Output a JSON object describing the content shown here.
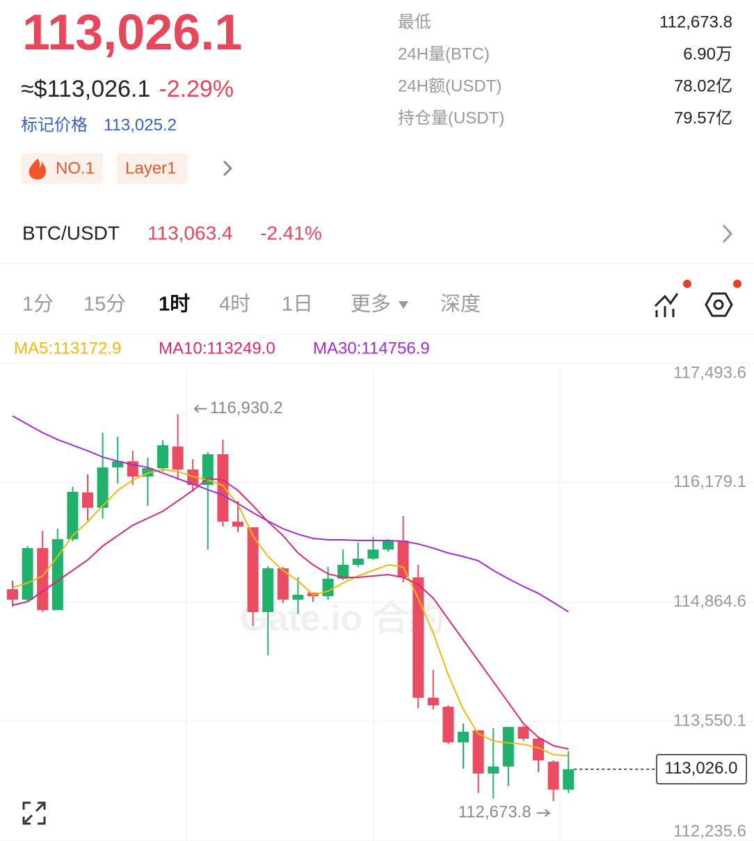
{
  "header": {
    "price": "113,026.1",
    "usd_price": "≈$113,026.1",
    "change": "-2.29%",
    "mark_price_label": "标记价格",
    "mark_price": "113,025.2",
    "tags": [
      "NO.1",
      "Layer1"
    ]
  },
  "stats": [
    {
      "label": "最低",
      "value": "112,673.8"
    },
    {
      "label": "24H量(BTC)",
      "value": "6.90万"
    },
    {
      "label": "24H额(USDT)",
      "value": "78.02亿"
    },
    {
      "label": "持仓量(USDT)",
      "value": "79.57亿"
    }
  ],
  "pair": {
    "name": "BTC/USDT",
    "price": "113,063.4",
    "change": "-2.41%"
  },
  "tabs": [
    "1分",
    "15分",
    "1时",
    "4时",
    "1日",
    "更多",
    "深度"
  ],
  "active_tab": "1时",
  "chart_data": {
    "type": "candlestick",
    "open": [
      115006,
      114891,
      115458,
      114777,
      115557,
      116070,
      115902,
      116346,
      116414,
      116246,
      116338,
      116575,
      116323,
      116154,
      116491,
      115749,
      115687,
      114754,
      115236,
      114891,
      114968,
      114930,
      115121,
      115274,
      115343,
      115442,
      115542,
      115136,
      113812,
      113713,
      113322,
      113453,
      112978,
      113055,
      113491,
      113361,
      113108,
      112802
    ],
    "high": [
      115098,
      115481,
      115649,
      115672,
      116131,
      116269,
      116728,
      116682,
      116529,
      116453,
      116644,
      116930.2,
      116437,
      116514,
      116652,
      115978,
      115687,
      115259,
      115251,
      115136,
      114968,
      115251,
      115442,
      115519,
      115580,
      115557,
      115810,
      115274,
      114118,
      113728,
      113529,
      113453,
      113476,
      113491,
      113506,
      113376,
      113123,
      113223
    ],
    "low": [
      114815,
      114868,
      114754,
      114777,
      115534,
      115764,
      115787,
      116169,
      116154,
      115925,
      116300,
      116208,
      116078,
      115442,
      115695,
      115634,
      114601,
      114279,
      114853,
      114738,
      114868,
      114891,
      115106,
      115251,
      115328,
      115419,
      115083,
      113697,
      113682,
      113299,
      113032,
      112764,
      112703,
      112840,
      113338,
      112993,
      112673.8,
      112764
    ],
    "close": [
      114891,
      115458,
      114777,
      115557,
      116078,
      115902,
      116346,
      116414,
      116246,
      116338,
      116590,
      116323,
      116154,
      116491,
      115749,
      115695,
      114754,
      115236,
      114891,
      114945,
      114930,
      115121,
      115274,
      115343,
      115442,
      115542,
      115136,
      113812,
      113728,
      113322,
      113437,
      112978,
      113055,
      113491,
      113361,
      113123,
      112802,
      113026.0
    ],
    "up_color": "#20b26c",
    "down_color": "#ea4d62",
    "series": [
      {
        "name": "MA5:113172.9",
        "color": "#f0b90b",
        "values": [
          115022,
          115075,
          115152,
          115366,
          115596,
          115749,
          115925,
          116093,
          116208,
          116284,
          116323,
          116300,
          116246,
          116208,
          116147,
          115940,
          115596,
          115366,
          115213,
          115098,
          114945,
          114983,
          115075,
          115152,
          115213,
          115274,
          115251,
          114907,
          114524,
          114065,
          113682,
          113415,
          113338,
          113315,
          113300,
          113262,
          113185,
          113172.9
        ]
      },
      {
        "name": "MA10:113249.0",
        "color": "#e0257a",
        "values": [
          114830,
          114869,
          114983,
          115098,
          115213,
          115328,
          115481,
          115596,
          115710,
          115787,
          115864,
          115978,
          116093,
          116223,
          116208,
          116093,
          115925,
          115749,
          115596,
          115404,
          115274,
          115175,
          115136,
          115136,
          115152,
          115167,
          115136,
          115060,
          114907,
          114677,
          114448,
          114218,
          113989,
          113759,
          113529,
          113376,
          113284,
          113249.0
        ]
      },
      {
        "name": "MA30:114756.9",
        "color": "#a12bd6",
        "values": [
          116912,
          116820,
          116728,
          116652,
          116591,
          116529,
          116460,
          116415,
          116376,
          116346,
          116284,
          116223,
          116162,
          116101,
          116040,
          115948,
          115848,
          115756,
          115672,
          115611,
          115565,
          115550,
          115550,
          115542,
          115542,
          115542,
          115534,
          115504,
          115458,
          115404,
          115366,
          115320,
          115213,
          115121,
          115037,
          114960,
          114861,
          114756.9
        ]
      }
    ],
    "ylim": [
      112235.6,
      117493.6
    ],
    "yticks": [
      {
        "value": 117493.6,
        "label": "117,493.6"
      },
      {
        "value": 116179.1,
        "label": "116,179.1"
      },
      {
        "value": 114864.6,
        "label": "114,864.6"
      },
      {
        "value": 113550.1,
        "label": "113,550.1"
      },
      {
        "value": 112235.6,
        "label": "112,235.6"
      }
    ],
    "grid": true,
    "annotations": [
      {
        "value": 116930.2,
        "label": "116,930.2"
      },
      {
        "value": 112673.8,
        "label": "112,673.8"
      }
    ],
    "last_price": {
      "value": 113026.0,
      "label": "113,026.0"
    },
    "watermark": "Gate.io 合约"
  }
}
